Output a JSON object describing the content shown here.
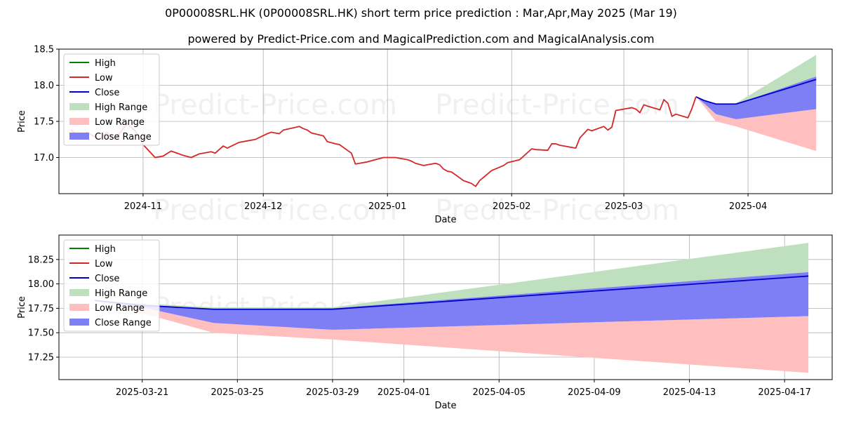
{
  "title": "0P00008SRL.HK (0P00008SRL.HK) short term price prediction : Mar,Apr,May 2025 (Mar 19)",
  "subtitle": "powered by Predict-Price.com and MagicalPrediction.com and MagicalAnalysis.com",
  "watermark": "Predict-Price.com",
  "legend_labels": {
    "high": "High",
    "low": "Low",
    "close": "Close",
    "high_range": "High Range",
    "low_range": "Low Range",
    "close_range": "Close Range"
  },
  "colors": {
    "high": "#008000",
    "low": "#d62728",
    "close": "#0000cc",
    "high_range": "#bfe0bf",
    "low_range": "#ffbfbf",
    "close_range": "#7f7ff5"
  },
  "chart_data": [
    {
      "type": "line",
      "xlabel": "Date",
      "ylabel": "Price",
      "grid": true,
      "legend_position": "top-left",
      "xlim": [
        "2024-10-11",
        "2025-04-22"
      ],
      "ylim": [
        16.5,
        18.5
      ],
      "x_ticks": [
        "2024-11-01",
        "2024-12-01",
        "2025-01-01",
        "2025-02-01",
        "2025-03-01",
        "2025-04-01"
      ],
      "x_tick_labels": [
        "2024-11",
        "2024-12",
        "2025-01",
        "2025-02",
        "2025-03",
        "2025-04"
      ],
      "y_ticks": [
        17.0,
        17.5,
        18.0,
        18.5
      ],
      "y_tick_labels": [
        "17.0",
        "17.5",
        "18.0",
        "18.5"
      ],
      "history": {
        "name": "Low",
        "x": [
          "2024-10-14",
          "2024-10-16",
          "2024-10-18",
          "2024-10-21",
          "2024-10-23",
          "2024-10-25",
          "2024-10-28",
          "2024-10-30",
          "2024-11-01",
          "2024-11-04",
          "2024-11-06",
          "2024-11-08",
          "2024-11-11",
          "2024-11-13",
          "2024-11-15",
          "2024-11-18",
          "2024-11-19",
          "2024-11-21",
          "2024-11-22",
          "2024-11-25",
          "2024-11-27",
          "2024-11-29",
          "2024-12-02",
          "2024-12-03",
          "2024-12-05",
          "2024-12-06",
          "2024-12-10",
          "2024-12-11",
          "2024-12-12",
          "2024-12-13",
          "2024-12-16",
          "2024-12-17",
          "2024-12-19",
          "2024-12-20",
          "2024-12-23",
          "2024-12-24",
          "2024-12-27",
          "2024-12-31",
          "2025-01-02",
          "2025-01-03",
          "2025-01-06",
          "2025-01-07",
          "2025-01-08",
          "2025-01-10",
          "2025-01-13",
          "2025-01-14",
          "2025-01-15",
          "2025-01-16",
          "2025-01-17",
          "2025-01-20",
          "2025-01-21",
          "2025-01-22",
          "2025-01-23",
          "2025-01-24",
          "2025-01-27",
          "2025-01-30",
          "2025-01-31",
          "2025-02-03",
          "2025-02-04",
          "2025-02-06",
          "2025-02-07",
          "2025-02-10",
          "2025-02-11",
          "2025-02-12",
          "2025-02-13",
          "2025-02-14",
          "2025-02-17",
          "2025-02-18",
          "2025-02-19",
          "2025-02-20",
          "2025-02-21",
          "2025-02-24",
          "2025-02-25",
          "2025-02-26",
          "2025-02-27",
          "2025-02-28",
          "2025-03-03",
          "2025-03-04",
          "2025-03-05",
          "2025-03-06",
          "2025-03-07",
          "2025-03-10",
          "2025-03-11",
          "2025-03-12",
          "2025-03-13",
          "2025-03-14",
          "2025-03-17",
          "2025-03-18",
          "2025-03-19"
        ],
        "values": [
          17.38,
          17.3,
          17.35,
          17.25,
          17.35,
          17.25,
          17.47,
          17.37,
          17.18,
          17.0,
          17.02,
          17.09,
          17.03,
          17.0,
          17.05,
          17.08,
          17.06,
          17.16,
          17.13,
          17.21,
          17.23,
          17.25,
          17.33,
          17.35,
          17.33,
          17.38,
          17.43,
          17.4,
          17.38,
          17.34,
          17.3,
          17.22,
          17.19,
          17.18,
          17.06,
          16.91,
          16.94,
          17.0,
          17.0,
          17.0,
          16.97,
          16.95,
          16.92,
          16.89,
          16.92,
          16.9,
          16.84,
          16.81,
          16.8,
          16.68,
          16.66,
          16.64,
          16.6,
          16.68,
          16.82,
          16.89,
          16.93,
          16.97,
          17.02,
          17.12,
          17.11,
          17.1,
          17.19,
          17.19,
          17.17,
          17.16,
          17.13,
          17.27,
          17.33,
          17.39,
          17.37,
          17.43,
          17.38,
          17.42,
          17.65,
          17.66,
          17.69,
          17.67,
          17.62,
          17.73,
          17.71,
          17.66,
          17.8,
          17.75,
          17.57,
          17.6,
          17.55,
          17.68,
          17.84
        ]
      },
      "forecast": {
        "x": [
          "2025-03-19",
          "2025-03-21",
          "2025-03-24",
          "2025-03-29",
          "2025-04-18"
        ],
        "high_upper": [
          17.84,
          17.79,
          17.74,
          17.75,
          18.42
        ],
        "high": [
          17.84,
          17.79,
          17.74,
          17.74,
          18.08
        ],
        "low": [
          17.84,
          17.71,
          17.5,
          17.43,
          17.09
        ],
        "close": [
          17.84,
          17.79,
          17.74,
          17.74,
          18.08
        ],
        "close_upper": [
          17.84,
          17.79,
          17.74,
          17.74,
          18.12
        ],
        "close_lower": [
          17.84,
          17.75,
          17.6,
          17.53,
          17.67
        ],
        "low_upper": [
          17.84,
          17.75,
          17.6,
          17.53,
          17.67
        ]
      }
    },
    {
      "type": "line",
      "xlabel": "Date",
      "ylabel": "Price",
      "grid": true,
      "legend_position": "top-left",
      "xlim": [
        "2025-03-17.5",
        "2025-04-19"
      ],
      "ylim": [
        17.02,
        18.5
      ],
      "x_ticks": [
        "2025-03-21",
        "2025-03-25",
        "2025-03-29",
        "2025-04-01",
        "2025-04-05",
        "2025-04-09",
        "2025-04-13",
        "2025-04-17"
      ],
      "x_tick_labels": [
        "2025-03-21",
        "2025-03-25",
        "2025-03-29",
        "2025-04-01",
        "2025-04-05",
        "2025-04-09",
        "2025-04-13",
        "2025-04-17"
      ],
      "y_ticks": [
        17.25,
        17.5,
        17.75,
        18.0,
        18.25
      ],
      "y_tick_labels": [
        "17.25",
        "17.50",
        "17.75",
        "18.00",
        "18.25"
      ],
      "forecast": {
        "x": [
          "2025-03-19",
          "2025-03-21",
          "2025-03-24",
          "2025-03-29",
          "2025-04-18"
        ],
        "high_upper": [
          17.83,
          17.8,
          17.76,
          17.76,
          18.42
        ],
        "close": [
          17.83,
          17.78,
          17.74,
          17.74,
          18.08
        ],
        "close_upper": [
          17.83,
          17.79,
          17.74,
          17.75,
          18.12
        ],
        "close_lower": [
          17.83,
          17.76,
          17.6,
          17.53,
          17.67
        ],
        "low_lower": [
          17.83,
          17.7,
          17.5,
          17.43,
          17.09
        ]
      }
    }
  ]
}
